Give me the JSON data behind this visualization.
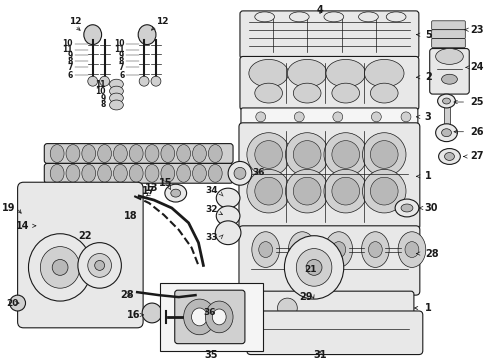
{
  "bg": "#ffffff",
  "lc": "#1a1a1a",
  "gray1": "#e8e8e8",
  "gray2": "#d0d0d0",
  "gray3": "#b8b8b8",
  "gray4": "#f5f5f5",
  "fig_w": 4.9,
  "fig_h": 3.6,
  "dpi": 100
}
